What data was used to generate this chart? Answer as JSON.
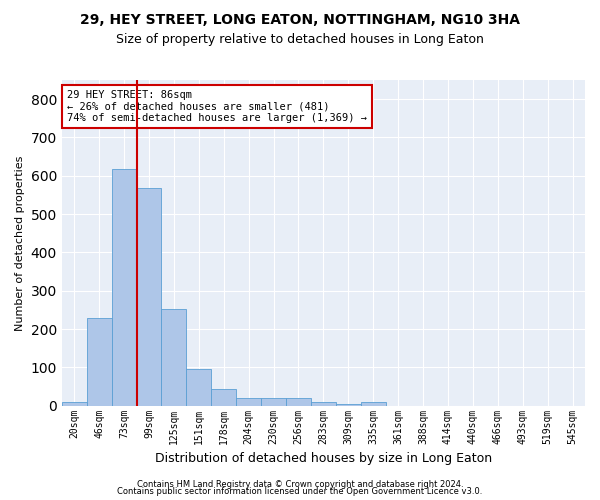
{
  "title": "29, HEY STREET, LONG EATON, NOTTINGHAM, NG10 3HA",
  "subtitle": "Size of property relative to detached houses in Long Eaton",
  "xlabel": "Distribution of detached houses by size in Long Eaton",
  "ylabel": "Number of detached properties",
  "bar_labels": [
    "20sqm",
    "46sqm",
    "73sqm",
    "99sqm",
    "125sqm",
    "151sqm",
    "178sqm",
    "204sqm",
    "230sqm",
    "256sqm",
    "283sqm",
    "309sqm",
    "335sqm",
    "361sqm",
    "388sqm",
    "414sqm",
    "440sqm",
    "466sqm",
    "493sqm",
    "519sqm",
    "545sqm"
  ],
  "bar_values": [
    10,
    228,
    618,
    568,
    253,
    95,
    43,
    20,
    20,
    20,
    10,
    5,
    10,
    0,
    0,
    0,
    0,
    0,
    0,
    0,
    0
  ],
  "bar_color": "#aec6e8",
  "bar_edge_color": "#5a9fd4",
  "vline_color": "#cc0000",
  "annotation_text": "29 HEY STREET: 86sqm\n← 26% of detached houses are smaller (481)\n74% of semi-detached houses are larger (1,369) →",
  "annotation_box_color": "#ffffff",
  "annotation_box_edge": "#cc0000",
  "ylim": [
    0,
    850
  ],
  "yticks": [
    0,
    100,
    200,
    300,
    400,
    500,
    600,
    700,
    800
  ],
  "background_color": "#e8eef7",
  "grid_color": "#ffffff",
  "fig_background": "#ffffff",
  "footer1": "Contains HM Land Registry data © Crown copyright and database right 2024.",
  "footer2": "Contains public sector information licensed under the Open Government Licence v3.0.",
  "title_fontsize": 10,
  "subtitle_fontsize": 9,
  "footer_fontsize": 6
}
